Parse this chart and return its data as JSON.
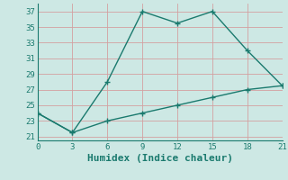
{
  "line1_x": [
    0,
    3,
    6,
    9,
    12,
    15,
    18,
    21
  ],
  "line1_y": [
    24,
    21.5,
    28,
    37,
    35.5,
    37,
    32,
    27.5
  ],
  "line2_x": [
    0,
    3,
    6,
    9,
    12,
    15,
    18,
    21
  ],
  "line2_y": [
    24,
    21.5,
    23.0,
    24.0,
    25.0,
    26.0,
    27.0,
    27.5
  ],
  "line_color": "#1a7a6e",
  "bg_color": "#cde8e4",
  "grid_color": "#b0d4cf",
  "xlabel": "Humidex (Indice chaleur)",
  "xlabel_fontsize": 8,
  "xticks": [
    0,
    3,
    6,
    9,
    12,
    15,
    18,
    21
  ],
  "yticks": [
    21,
    23,
    25,
    27,
    29,
    31,
    33,
    35,
    37
  ],
  "xlim": [
    0,
    21
  ],
  "ylim": [
    20.5,
    38.0
  ]
}
